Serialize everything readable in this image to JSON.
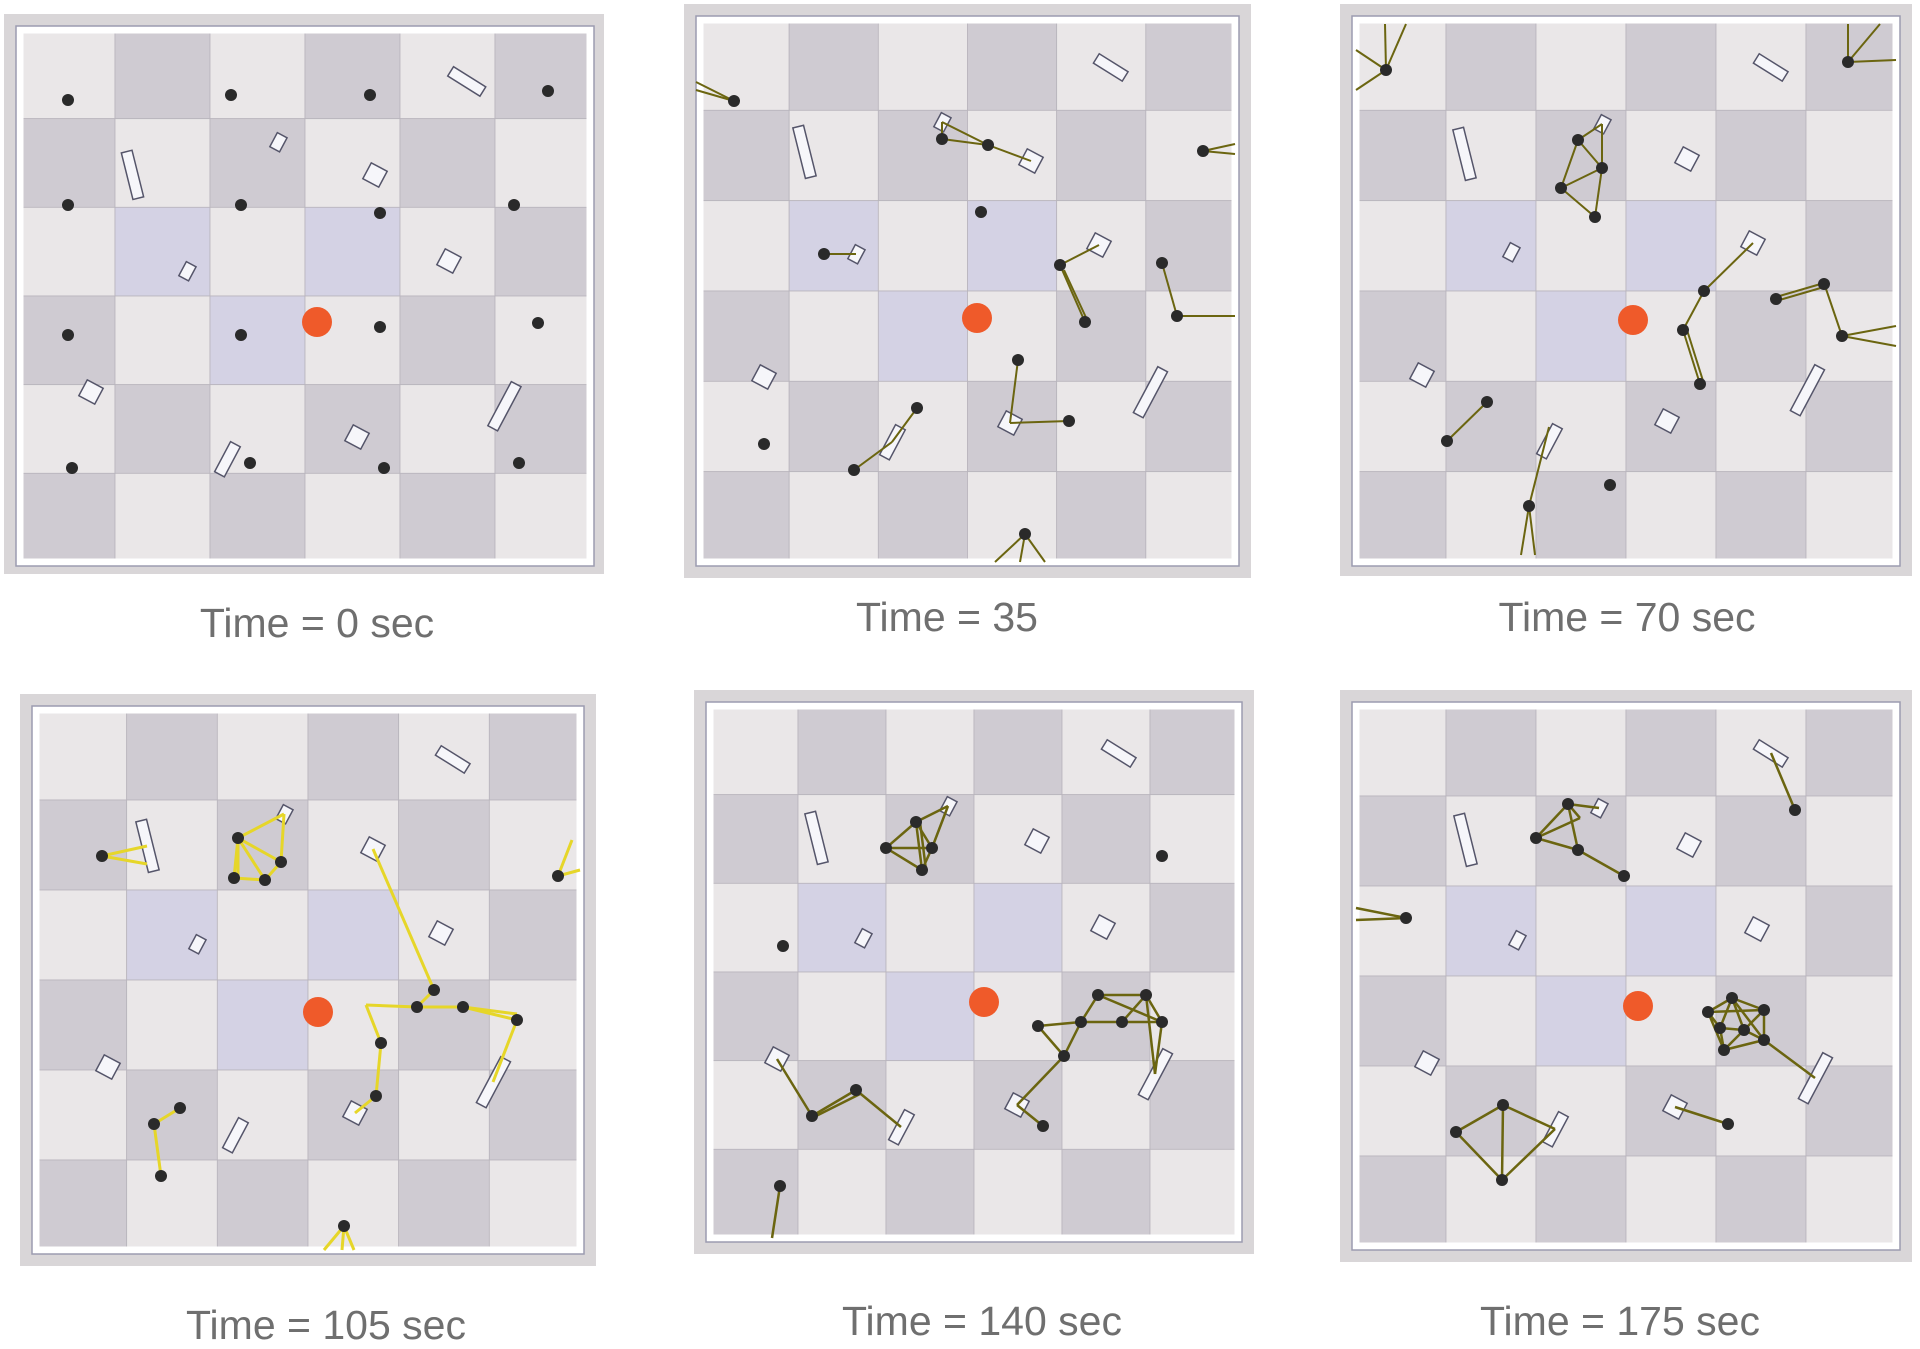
{
  "colors": {
    "tile_light": "#eae7e8",
    "tile_dark": "#cfcbd2",
    "tile_blue": "#d4d2e4",
    "wall": "#ffffff",
    "wall_edge": "#9c9cb0",
    "robot": "#2a2a2a",
    "obstacle_fill": "#f6f6fa",
    "obstacle_edge": "#55556a",
    "target": "#ef5a2a",
    "link_dark": "#6b6510",
    "link_bright": "#e6d629"
  },
  "panels": [
    {
      "caption": "Time = 0 sec",
      "link_color": "link_dark"
    },
    {
      "caption": "Time = 35",
      "link_color": "link_dark"
    },
    {
      "caption": "Time = 70 sec",
      "link_color": "link_dark"
    },
    {
      "caption": "Time = 105 sec",
      "link_color": "link_bright"
    },
    {
      "caption": "Time = 140 sec",
      "link_color": "link_dark"
    },
    {
      "caption": "Time = 175 sec",
      "link_color": "link_dark"
    }
  ]
}
